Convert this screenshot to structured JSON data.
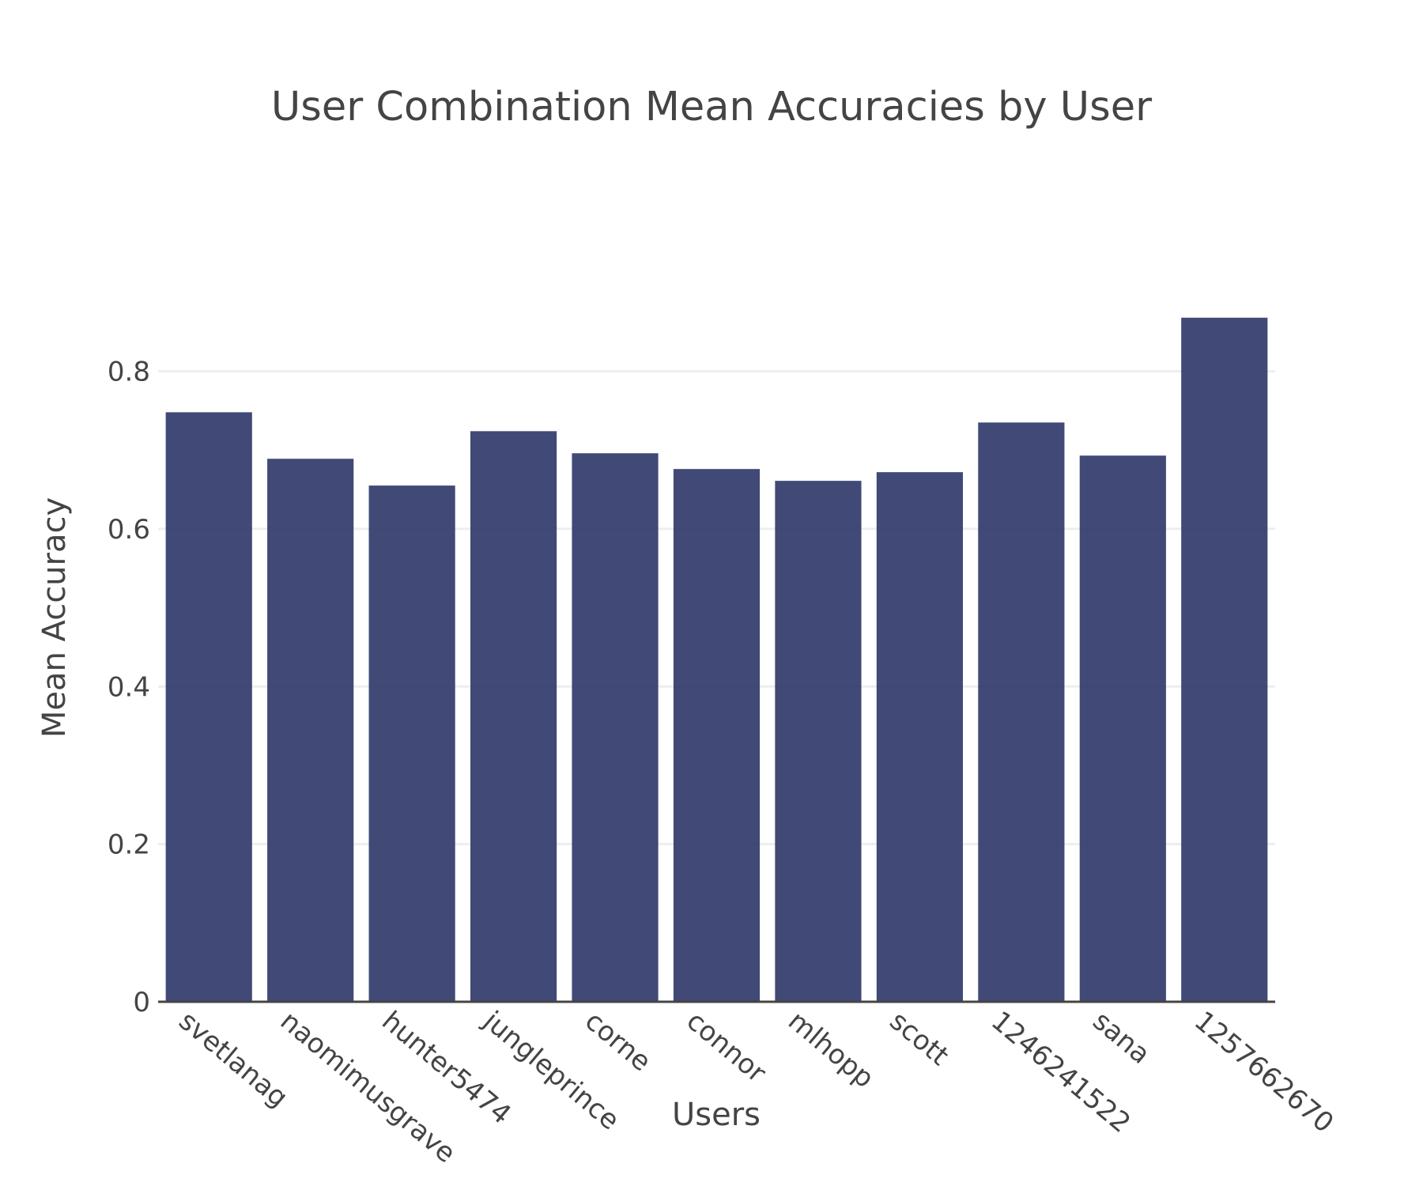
{
  "chart_data": {
    "type": "bar",
    "title": "User Combination Mean Accuracies by User",
    "xlabel": "Users",
    "ylabel": "Mean Accuracy",
    "categories": [
      "svetlanag",
      "naomimusgrave",
      "hunter5474",
      "jungleprince",
      "corne",
      "connor",
      "mlhopp",
      "scott",
      "1246241522",
      "sana",
      "1257662670"
    ],
    "values": [
      0.748,
      0.689,
      0.655,
      0.724,
      0.696,
      0.676,
      0.661,
      0.672,
      0.735,
      0.693,
      0.868
    ],
    "ylim": [
      0,
      0.93
    ],
    "yticks": [
      0,
      0.2,
      0.4,
      0.6,
      0.8
    ],
    "ytick_labels": [
      "0",
      "0.2",
      "0.4",
      "0.6",
      "0.8"
    ],
    "grid": true,
    "colors": {
      "bar": "#2c3568",
      "grid": "#eeeeee",
      "axis_line": "#444444",
      "text": "#444444"
    }
  }
}
